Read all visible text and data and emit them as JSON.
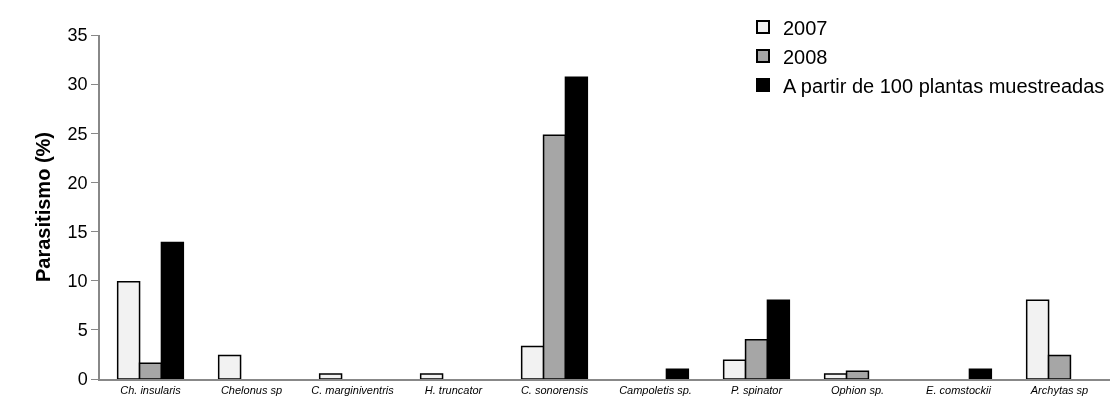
{
  "chart_data": {
    "type": "bar",
    "ylabel": "Parasitismo (%)",
    "categories": [
      "Ch. insularis",
      "Chelonus sp",
      "C. marginiventris",
      "H. truncator",
      "C. sonorensis",
      "Campoletis sp.",
      "P. spinator",
      "Ophion sp.",
      "E. comstockii",
      "Archytas sp"
    ],
    "series": [
      {
        "name": "2007",
        "color": "#f2f2f2",
        "values": [
          9.9,
          2.4,
          0.5,
          0.5,
          3.3,
          null,
          1.9,
          0.5,
          null,
          8.0
        ]
      },
      {
        "name": "2008",
        "color": "#a6a6a6",
        "values": [
          1.6,
          null,
          null,
          null,
          24.8,
          null,
          4.0,
          0.8,
          null,
          2.4
        ]
      },
      {
        "name": "A partir de 100 plantas muestreadas",
        "color": "#000000",
        "values": [
          13.9,
          null,
          null,
          null,
          30.7,
          1.0,
          8.0,
          null,
          1.0,
          null
        ]
      }
    ],
    "ylim": [
      0,
      35
    ],
    "yticks": [
      0,
      5,
      10,
      15,
      20,
      25,
      30,
      35
    ],
    "grid": false,
    "legend": "top right"
  }
}
